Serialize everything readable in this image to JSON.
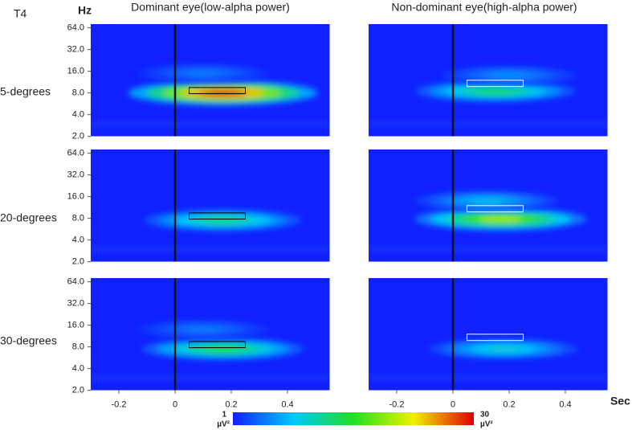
{
  "label": "T4",
  "y_axis_label": "Hz",
  "x_axis_label": "Sec",
  "columns": [
    "Dominant eye(low-alpha power)",
    "Non-dominant eye(high-alpha power)"
  ],
  "rows": [
    "5-degrees",
    "20-degrees",
    "30-degrees"
  ],
  "colorbar": {
    "min_label": "1",
    "max_label": "30",
    "unit": "µV²",
    "lim": [
      1,
      30
    ]
  },
  "chart_data": [
    {
      "type": "heatmap",
      "xlim": [
        -0.3,
        0.55
      ],
      "ylim": [
        2,
        72
      ],
      "log_y": true,
      "marker_x": 0,
      "yticks": [
        {
          "value": 2,
          "label": "2.0"
        },
        {
          "value": 4,
          "label": "4.0"
        },
        {
          "value": 8,
          "label": "8.0"
        },
        {
          "value": 16,
          "label": "16.0"
        },
        {
          "value": 32,
          "label": "32.0"
        },
        {
          "value": 64,
          "label": "64.0"
        }
      ],
      "box": {
        "x": [
          0.05,
          0.25
        ],
        "y": [
          7.8,
          9.5
        ],
        "color": "#000000"
      },
      "peaks": [
        {
          "x": 0.17,
          "y": 8,
          "value": 30
        },
        {
          "x": 0.1,
          "y": 15,
          "value": 5
        }
      ]
    },
    {
      "type": "heatmap",
      "xlim": [
        -0.3,
        0.55
      ],
      "ylim": [
        2,
        72
      ],
      "log_y": true,
      "marker_x": 0,
      "box": {
        "x": [
          0.05,
          0.25
        ],
        "y": [
          9.8,
          12
        ],
        "color": "#ffffff"
      },
      "peaks": [
        {
          "x": 0.15,
          "y": 8.5,
          "value": 14
        },
        {
          "x": 0.2,
          "y": 14,
          "value": 6
        }
      ]
    },
    {
      "type": "heatmap",
      "xlim": [
        -0.3,
        0.55
      ],
      "ylim": [
        2,
        72
      ],
      "log_y": true,
      "marker_x": 0,
      "yticks": [
        {
          "value": 2,
          "label": "2.0"
        },
        {
          "value": 4,
          "label": "4.0"
        },
        {
          "value": 8,
          "label": "8.0"
        },
        {
          "value": 16,
          "label": "16.0"
        },
        {
          "value": 32,
          "label": "32.0"
        },
        {
          "value": 64,
          "label": "64.0"
        }
      ],
      "box": {
        "x": [
          0.05,
          0.25
        ],
        "y": [
          7.8,
          9.5
        ],
        "color": "#000000"
      },
      "peaks": [
        {
          "x": 0.17,
          "y": 7.5,
          "value": 13
        }
      ]
    },
    {
      "type": "heatmap",
      "xlim": [
        -0.3,
        0.55
      ],
      "ylim": [
        2,
        72
      ],
      "log_y": true,
      "marker_x": 0,
      "box": {
        "x": [
          0.05,
          0.25
        ],
        "y": [
          9.8,
          12
        ],
        "color": "#ffffff"
      },
      "peaks": [
        {
          "x": 0.17,
          "y": 7.8,
          "value": 20
        },
        {
          "x": 0.12,
          "y": 14,
          "value": 8
        }
      ]
    },
    {
      "type": "heatmap",
      "xlim": [
        -0.3,
        0.55
      ],
      "ylim": [
        2,
        72
      ],
      "log_y": true,
      "marker_x": 0,
      "yticks": [
        {
          "value": 2,
          "label": "2.0"
        },
        {
          "value": 4,
          "label": "4.0"
        },
        {
          "value": 8,
          "label": "8.0"
        },
        {
          "value": 16,
          "label": "16.0"
        },
        {
          "value": 32,
          "label": "32.0"
        },
        {
          "value": 64,
          "label": "64.0"
        }
      ],
      "xticks": [
        -0.2,
        0,
        0.2,
        0.4
      ],
      "box": {
        "x": [
          0.05,
          0.25
        ],
        "y": [
          7.8,
          9.5
        ],
        "color": "#000000"
      },
      "peaks": [
        {
          "x": 0.17,
          "y": 7.5,
          "value": 15
        },
        {
          "x": 0.1,
          "y": 14,
          "value": 5
        }
      ]
    },
    {
      "type": "heatmap",
      "xlim": [
        -0.3,
        0.55
      ],
      "ylim": [
        2,
        72
      ],
      "log_y": true,
      "marker_x": 0,
      "xticks": [
        -0.2,
        0,
        0.2,
        0.4
      ],
      "box": {
        "x": [
          0.05,
          0.25
        ],
        "y": [
          9.8,
          12
        ],
        "color": "#ffffff"
      },
      "peaks": [
        {
          "x": 0.18,
          "y": 7.5,
          "value": 10
        }
      ]
    }
  ]
}
